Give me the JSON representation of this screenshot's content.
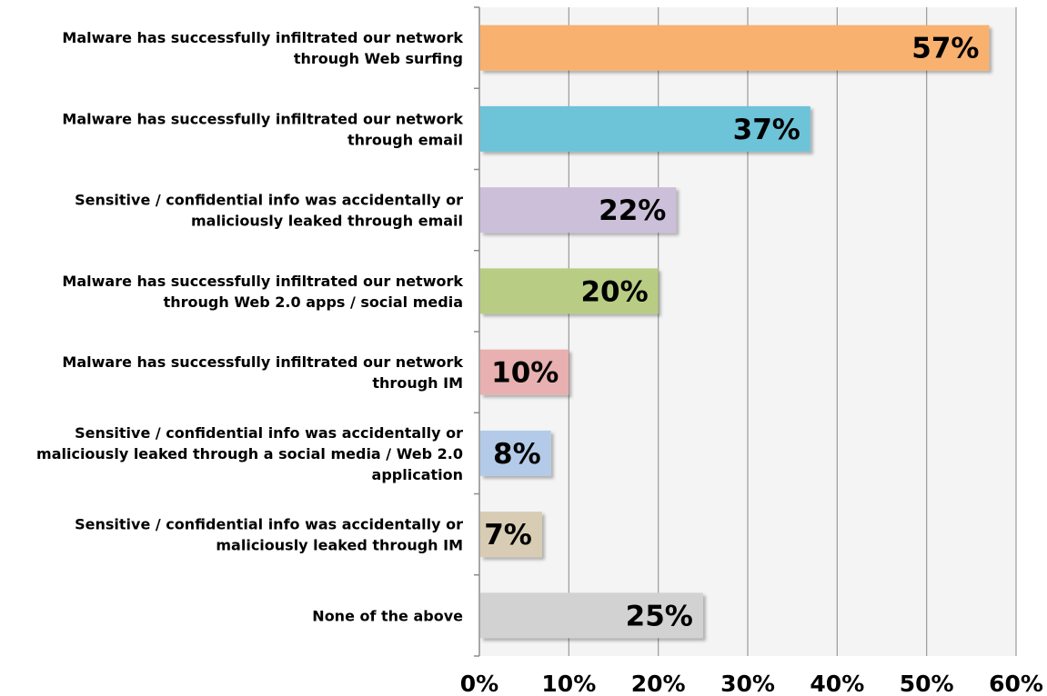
{
  "chart_data": {
    "type": "bar",
    "orientation": "horizontal",
    "categories": [
      [
        "Malware has successfully infiltrated our network",
        "through Web surfing"
      ],
      [
        "Malware has successfully infiltrated our network",
        "through email"
      ],
      [
        "Sensitive / confidential info was accidentally or",
        "maliciously leaked through email"
      ],
      [
        "Malware has successfully infiltrated our network",
        "through Web 2.0 apps / social media"
      ],
      [
        "Malware has successfully infiltrated our network",
        "through IM"
      ],
      [
        "Sensitive / confidential info was accidentally or",
        "maliciously leaked through a social media / Web 2.0",
        "application"
      ],
      [
        "Sensitive / confidential info was accidentally or",
        "maliciously leaked through IM"
      ],
      [
        "None of the above"
      ]
    ],
    "values": [
      57,
      37,
      22,
      20,
      10,
      8,
      7,
      25
    ],
    "value_labels": [
      "57%",
      "37%",
      "22%",
      "20%",
      "10%",
      "8%",
      "7%",
      "25%"
    ],
    "bar_colors": [
      "#F8B16E",
      "#6DC3D8",
      "#CBBFD9",
      "#B8CD83",
      "#E8B0B0",
      "#B3CBE8",
      "#D8CCB4",
      "#D2D2D2"
    ],
    "xticks": [
      "0%",
      "10%",
      "20%",
      "30%",
      "40%",
      "50%",
      "60%"
    ],
    "xlim": [
      0,
      60
    ],
    "grid": true,
    "plot_background": "#F4F4F4",
    "title": "",
    "xlabel": "",
    "ylabel": ""
  }
}
